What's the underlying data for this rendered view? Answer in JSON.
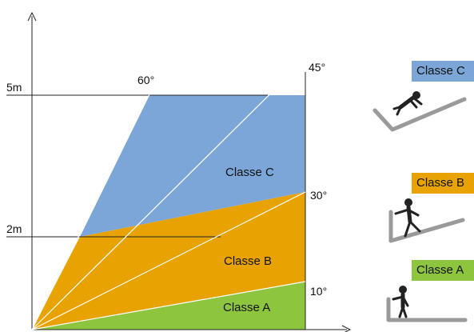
{
  "diagram": {
    "height_labels": {
      "upper": "5m",
      "lower": "2m"
    },
    "angle_labels": {
      "a60": "60°",
      "a45": "45°",
      "a30": "30°",
      "a10": "10°"
    },
    "region_labels": {
      "c": "Classe C",
      "b": "Classe B",
      "a": "Classe A"
    }
  },
  "legend": {
    "c": {
      "label": "Classe C",
      "color": "#7ca6d8",
      "pictogram": "person-falling-on-steep-slope-icon"
    },
    "b": {
      "label": "Classe B",
      "color": "#e8a202",
      "pictogram": "person-walking-up-slope-icon"
    },
    "a": {
      "label": "Classe A",
      "color": "#8dc53e",
      "pictogram": "person-standing-on-flat-surface-icon"
    }
  },
  "colors": {
    "classe_c": "#7ca6d8",
    "classe_b": "#e8a202",
    "classe_a": "#8dc53e",
    "lines": "#222222"
  }
}
